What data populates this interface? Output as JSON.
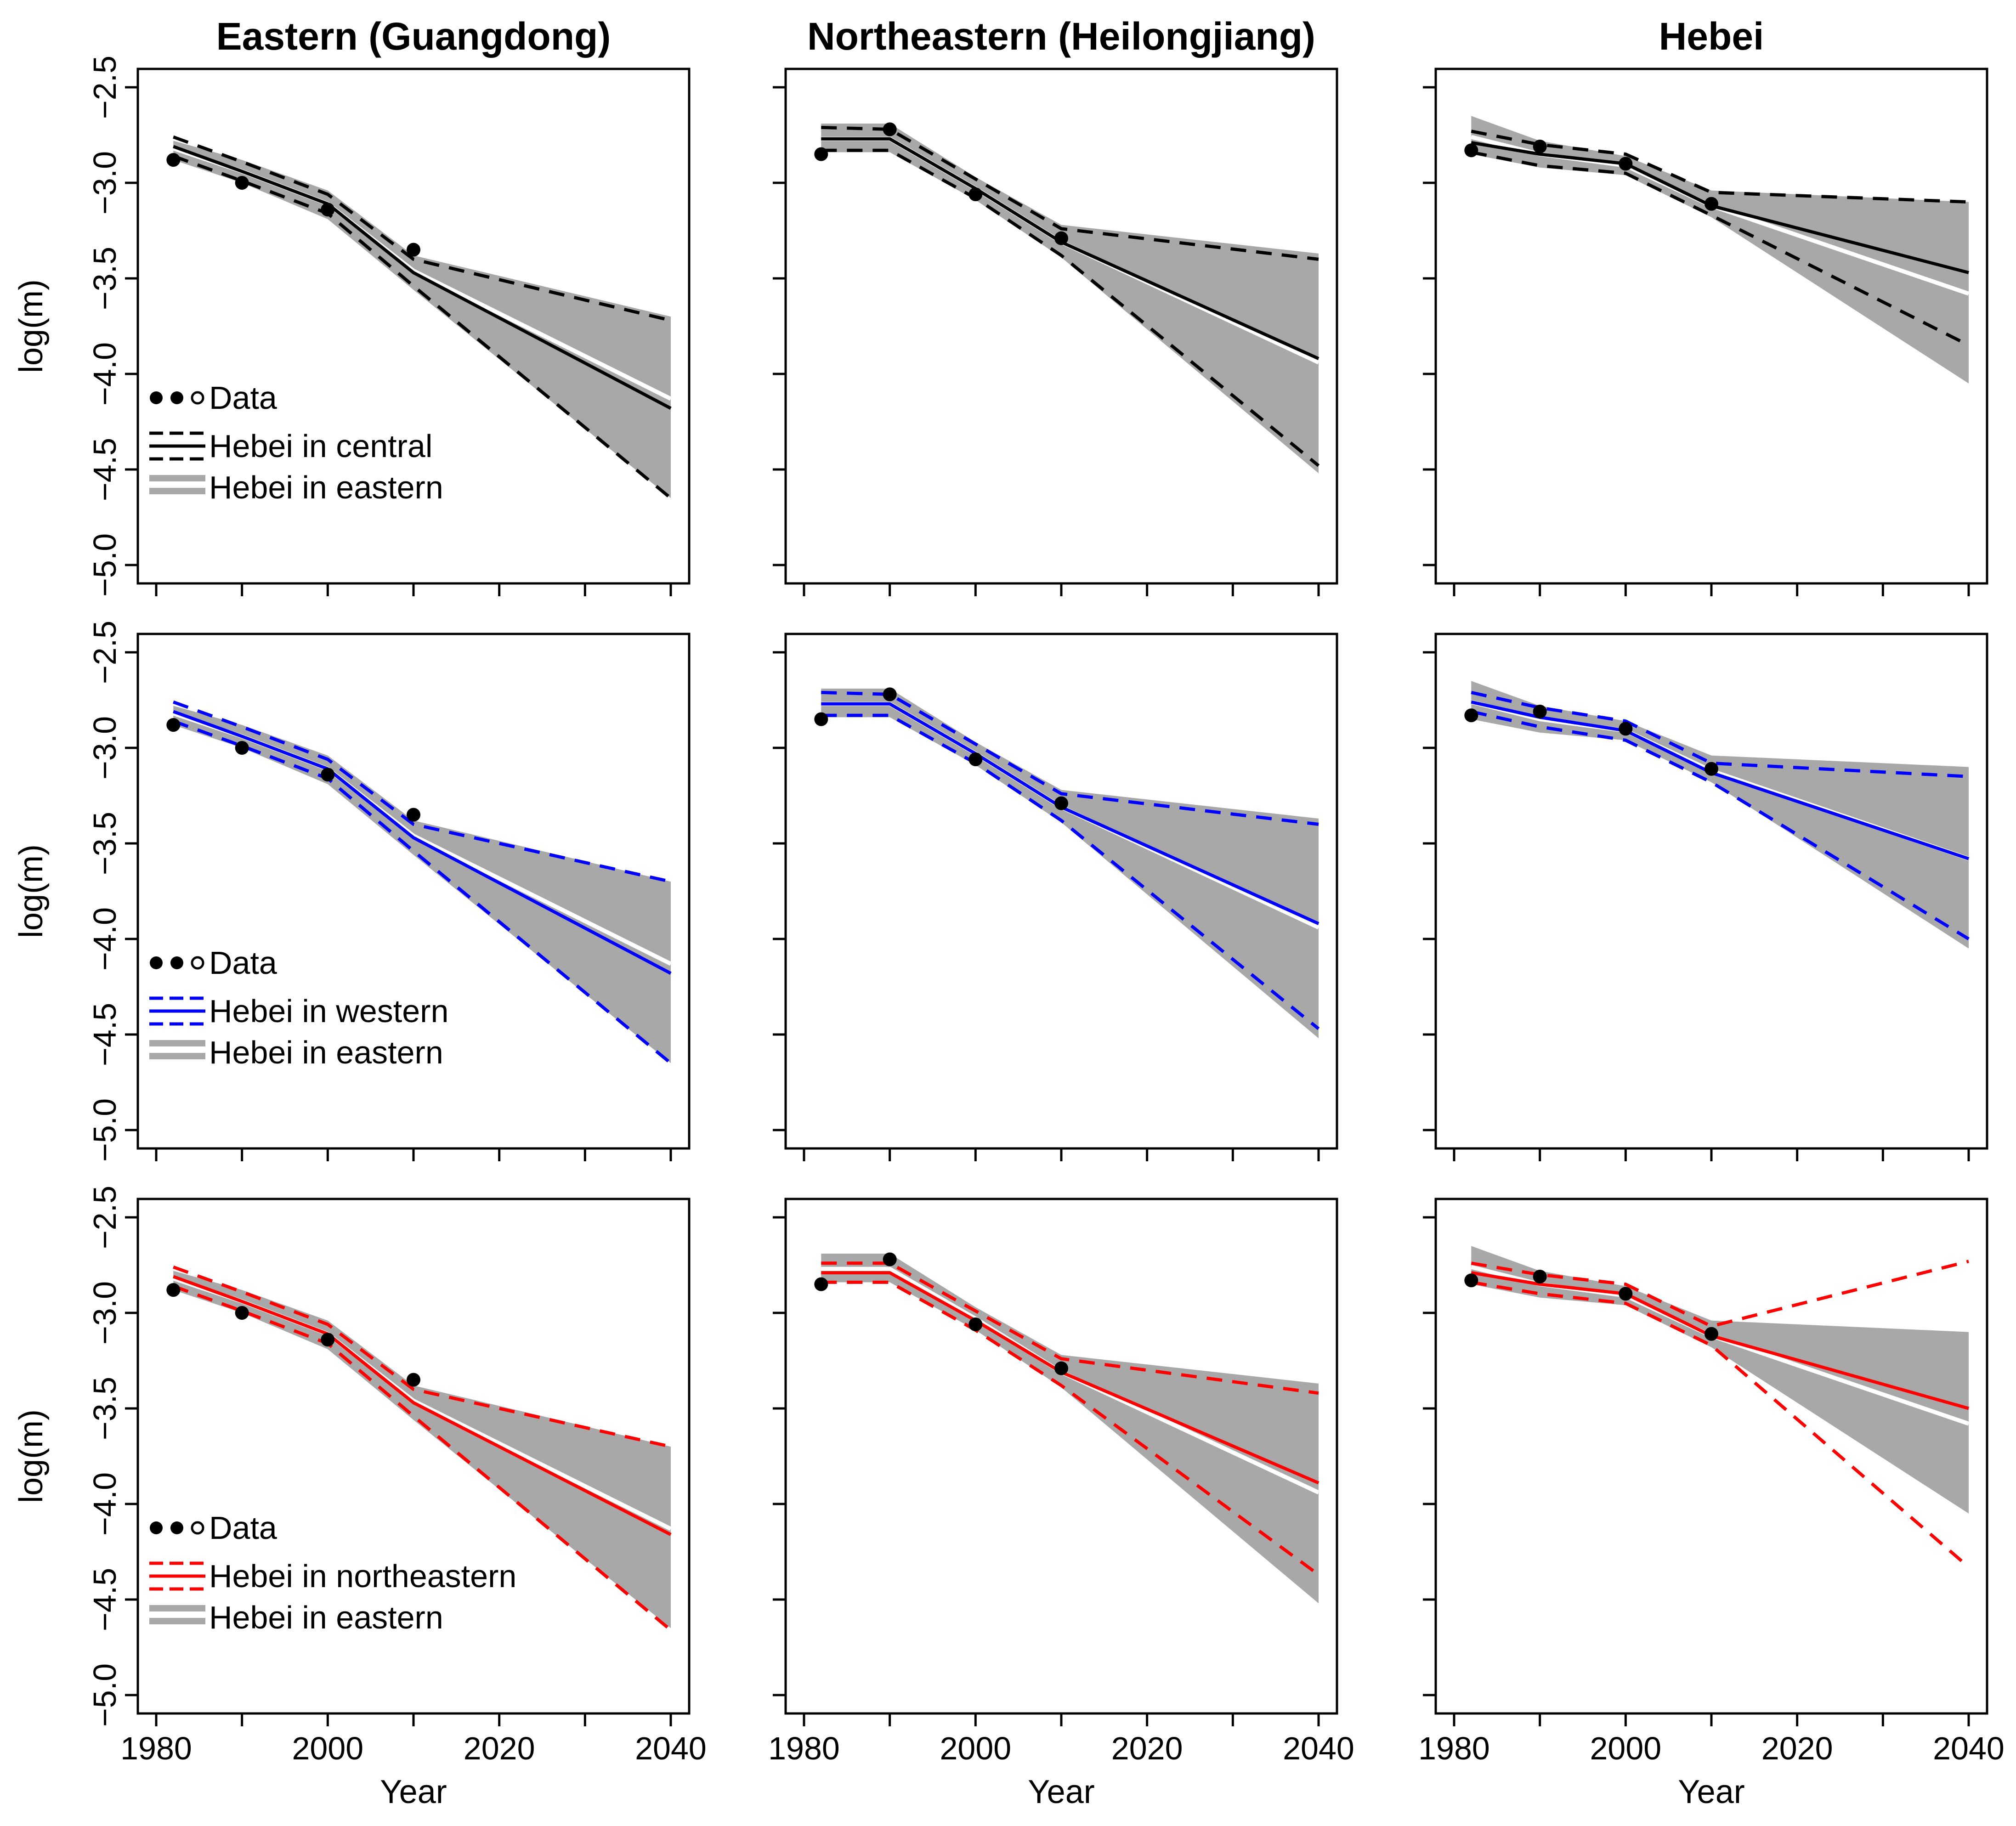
{
  "chart_data": {
    "type": "line",
    "column_titles": [
      "Eastern (Guangdong)",
      "Northeastern (Heilongjiang)",
      "Hebei"
    ],
    "xlabel": "Year",
    "ylabel": "log(m)",
    "xlim": [
      1980,
      2040
    ],
    "ylim": [
      -5.0,
      -2.5
    ],
    "x_ticks": [
      1980,
      1990,
      2000,
      2010,
      2020,
      2030,
      2040
    ],
    "x_tick_labels": [
      "1980",
      "2000",
      "2020",
      "2040"
    ],
    "y_ticks": [
      -2.5,
      -3.0,
      -3.5,
      -4.0,
      -4.5,
      -5.0
    ],
    "y_tick_labels": [
      "-2.5",
      "-3.0",
      "-3.5",
      "-4.0",
      "-4.5",
      "-5.0"
    ],
    "colors": {
      "central": "#000000",
      "western": "#0000ff",
      "northeastern": "#ff0000",
      "eastern_band": "#a8a8a8",
      "points": "#000000"
    },
    "legend_data_label": "Data",
    "legend_eastern_label": "Hebei in eastern",
    "row_legend_labels": [
      "Hebei in central",
      "Hebei in western",
      "Hebei in northeastern"
    ],
    "years": [
      1982,
      1990,
      2000,
      2010,
      2040
    ],
    "observed": [
      {
        "region": "Eastern (Guangdong)",
        "x": [
          1982,
          1990,
          2000,
          2010
        ],
        "y": [
          -2.88,
          -3.0,
          -3.14,
          -3.35
        ]
      },
      {
        "region": "Northeastern (Heilongjiang)",
        "x": [
          1982,
          1990,
          2000,
          2010
        ],
        "y": [
          -2.85,
          -2.72,
          -3.06,
          -3.29
        ]
      },
      {
        "region": "Hebei",
        "x": [
          1982,
          1990,
          2000,
          2010
        ],
        "y": [
          -2.83,
          -2.81,
          -2.9,
          -3.11
        ]
      }
    ],
    "eastern_band": [
      {
        "region": "Eastern (Guangdong)",
        "upper": [
          -2.78,
          -2.88,
          -3.04,
          -3.38,
          -3.7
        ],
        "lower": [
          -2.88,
          -3.0,
          -3.19,
          -3.56,
          -4.65
        ],
        "median": [
          -2.82,
          -2.94,
          -3.11,
          -3.46,
          -4.13
        ]
      },
      {
        "region": "Northeastern (Heilongjiang)",
        "upper": [
          -2.69,
          -2.69,
          -2.97,
          -3.22,
          -3.37
        ],
        "lower": [
          -2.84,
          -2.84,
          -3.09,
          -3.39,
          -4.52
        ],
        "median": [
          -2.77,
          -2.77,
          -3.03,
          -3.31,
          -3.94
        ]
      },
      {
        "region": "Hebei",
        "upper": [
          -2.65,
          -2.78,
          -2.86,
          -3.04,
          -3.1
        ],
        "lower": [
          -2.85,
          -2.92,
          -2.96,
          -3.18,
          -4.05
        ],
        "median": [
          -2.76,
          -2.85,
          -2.91,
          -3.12,
          -3.58
        ]
      }
    ],
    "series": [
      {
        "row": "Hebei in central",
        "color": "#000000",
        "panels": [
          {
            "median": [
              -2.81,
              -2.94,
              -3.11,
              -3.47,
              -4.18
            ],
            "upper": [
              -2.76,
              -2.89,
              -3.06,
              -3.4,
              -3.72
            ],
            "lower": [
              -2.86,
              -2.99,
              -3.16,
              -3.54,
              -4.65
            ]
          },
          {
            "median": [
              -2.77,
              -2.77,
              -3.03,
              -3.31,
              -3.92
            ],
            "upper": [
              -2.71,
              -2.72,
              -2.98,
              -3.24,
              -3.4
            ],
            "lower": [
              -2.83,
              -2.83,
              -3.08,
              -3.38,
              -4.48
            ]
          },
          {
            "median": [
              -2.79,
              -2.85,
              -2.9,
              -3.12,
              -3.47
            ],
            "upper": [
              -2.73,
              -2.8,
              -2.85,
              -3.05,
              -3.1
            ],
            "lower": [
              -2.84,
              -2.91,
              -2.95,
              -3.17,
              -3.85
            ]
          }
        ]
      },
      {
        "row": "Hebei in western",
        "color": "#0000ff",
        "panels": [
          {
            "median": [
              -2.81,
              -2.94,
              -3.11,
              -3.47,
              -4.18
            ],
            "upper": [
              -2.76,
              -2.89,
              -3.06,
              -3.4,
              -3.7
            ],
            "lower": [
              -2.86,
              -2.99,
              -3.16,
              -3.54,
              -4.65
            ]
          },
          {
            "median": [
              -2.77,
              -2.77,
              -3.03,
              -3.31,
              -3.92
            ],
            "upper": [
              -2.71,
              -2.72,
              -2.98,
              -3.24,
              -3.4
            ],
            "lower": [
              -2.83,
              -2.83,
              -3.08,
              -3.38,
              -4.47
            ]
          },
          {
            "median": [
              -2.76,
              -2.84,
              -2.91,
              -3.13,
              -3.58
            ],
            "upper": [
              -2.71,
              -2.79,
              -2.86,
              -3.08,
              -3.15
            ],
            "lower": [
              -2.81,
              -2.89,
              -2.96,
              -3.18,
              -4.0
            ]
          }
        ]
      },
      {
        "row": "Hebei in northeastern",
        "color": "#ff0000",
        "panels": [
          {
            "median": [
              -2.81,
              -2.94,
              -3.11,
              -3.47,
              -4.16
            ],
            "upper": [
              -2.76,
              -2.89,
              -3.06,
              -3.4,
              -3.7
            ],
            "lower": [
              -2.86,
              -2.99,
              -3.16,
              -3.54,
              -4.66
            ]
          },
          {
            "median": [
              -2.79,
              -2.79,
              -3.04,
              -3.31,
              -3.89
            ],
            "upper": [
              -2.74,
              -2.74,
              -2.99,
              -3.24,
              -3.42
            ],
            "lower": [
              -2.84,
              -2.84,
              -3.09,
              -3.38,
              -4.37
            ]
          },
          {
            "median": [
              -2.79,
              -2.85,
              -2.9,
              -3.12,
              -3.5
            ],
            "upper": [
              -2.74,
              -2.8,
              -2.85,
              -3.07,
              -2.73
            ],
            "lower": [
              -2.84,
              -2.9,
              -2.95,
              -3.17,
              -4.33
            ]
          }
        ]
      }
    ]
  }
}
